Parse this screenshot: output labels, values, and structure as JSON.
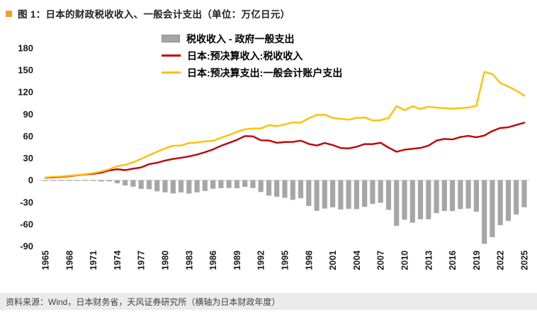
{
  "figure": {
    "title": "图 1：日本的财政税收收入、一般会计支出（单位：万亿日元）",
    "source_note": "资料来源：Wind，日本财务省，天风证券研究所（横轴为日本财政年度）",
    "accent_color": "#F0A22E"
  },
  "chart_data": {
    "type": "combo",
    "title": "日本的财政税收收入、一般会计支出",
    "unit": "万亿日元",
    "ylim": [
      -90,
      180
    ],
    "y_ticks": [
      180,
      150,
      120,
      90,
      60,
      30,
      0,
      -30,
      -60,
      -90
    ],
    "x": [
      1965,
      1966,
      1967,
      1968,
      1969,
      1970,
      1971,
      1972,
      1973,
      1974,
      1975,
      1976,
      1977,
      1978,
      1979,
      1980,
      1981,
      1982,
      1983,
      1984,
      1985,
      1986,
      1987,
      1988,
      1989,
      1990,
      1991,
      1992,
      1993,
      1994,
      1995,
      1996,
      1997,
      1998,
      1999,
      2000,
      2001,
      2002,
      2003,
      2004,
      2005,
      2006,
      2007,
      2008,
      2009,
      2010,
      2011,
      2012,
      2013,
      2014,
      2015,
      2016,
      2017,
      2018,
      2019,
      2020,
      2021,
      2022,
      2023,
      2024,
      2025
    ],
    "x_ticks": [
      1965,
      1968,
      1971,
      1974,
      1977,
      1980,
      1983,
      1986,
      1989,
      1992,
      1995,
      1998,
      2001,
      2004,
      2007,
      2010,
      2013,
      2016,
      2019,
      2022,
      2025
    ],
    "series": [
      {
        "name": "税收收入 - 政府一般支出",
        "type": "bar",
        "color": "#A6A6A6",
        "values": [
          -0.4,
          -0.8,
          -0.7,
          -0.6,
          -0.3,
          -0.4,
          -1.0,
          -1.7,
          -1.5,
          -4.2,
          -7.2,
          -8.8,
          -11.8,
          -12.2,
          -15.1,
          -16.6,
          -18.0,
          -16.7,
          -18.2,
          -16.6,
          -14.8,
          -11.7,
          -10.9,
          -10.7,
          -11.0,
          -9.2,
          -10.7,
          -16.1,
          -21.0,
          -22.6,
          -24.0,
          -26.7,
          -24.6,
          -35.0,
          -41.8,
          -38.6,
          -36.9,
          -39.9,
          -39.1,
          -39.3,
          -36.4,
          -32.3,
          -30.8,
          -40.4,
          -62.3,
          -53.8,
          -57.9,
          -53.2,
          -53.2,
          -44.8,
          -41.9,
          -42.0,
          -39.3,
          -38.6,
          -43.0,
          -86.8,
          -77.6,
          -61.3,
          -55.5,
          -46.8,
          -36.8
        ]
      },
      {
        "name": "日本:预决算收入:税收收入",
        "type": "line",
        "color": "#C00000",
        "values": [
          3.3,
          3.7,
          4.4,
          5.3,
          6.6,
          7.8,
          8.6,
          10.2,
          13.3,
          14.9,
          13.7,
          15.7,
          17.3,
          21.9,
          23.7,
          26.8,
          28.9,
          30.5,
          32.4,
          34.9,
          38.2,
          41.9,
          46.8,
          50.8,
          54.9,
          60.1,
          59.8,
          54.4,
          54.1,
          51.0,
          51.9,
          52.1,
          53.9,
          49.4,
          47.2,
          50.7,
          47.9,
          43.8,
          43.3,
          45.6,
          49.1,
          49.1,
          51.0,
          44.3,
          38.7,
          41.5,
          42.8,
          43.9,
          47.0,
          54.0,
          56.3,
          55.5,
          58.8,
          60.4,
          58.4,
          60.8,
          67.0,
          71.1,
          72.1,
          75.2,
          78.4
        ]
      },
      {
        "name": "日本:预决算支出:一般会计账户支出",
        "type": "line",
        "color": "#FFC000",
        "values": [
          3.7,
          4.5,
          5.1,
          5.9,
          6.9,
          8.2,
          9.6,
          11.9,
          14.8,
          19.1,
          20.9,
          24.5,
          29.1,
          34.1,
          38.8,
          43.4,
          46.9,
          47.2,
          50.6,
          51.5,
          53.0,
          53.6,
          57.7,
          61.5,
          65.9,
          69.3,
          70.5,
          70.5,
          75.1,
          73.6,
          75.9,
          78.8,
          78.5,
          84.4,
          89.0,
          89.3,
          84.8,
          83.7,
          82.4,
          84.9,
          85.5,
          81.4,
          81.8,
          84.7,
          101.0,
          95.3,
          100.7,
          97.1,
          100.2,
          98.8,
          98.2,
          97.5,
          98.1,
          99.0,
          101.4,
          147.6,
          144.6,
          132.4,
          127.6,
          122.0,
          115.2
        ]
      }
    ],
    "legend_position": "top-center",
    "grid": false
  }
}
